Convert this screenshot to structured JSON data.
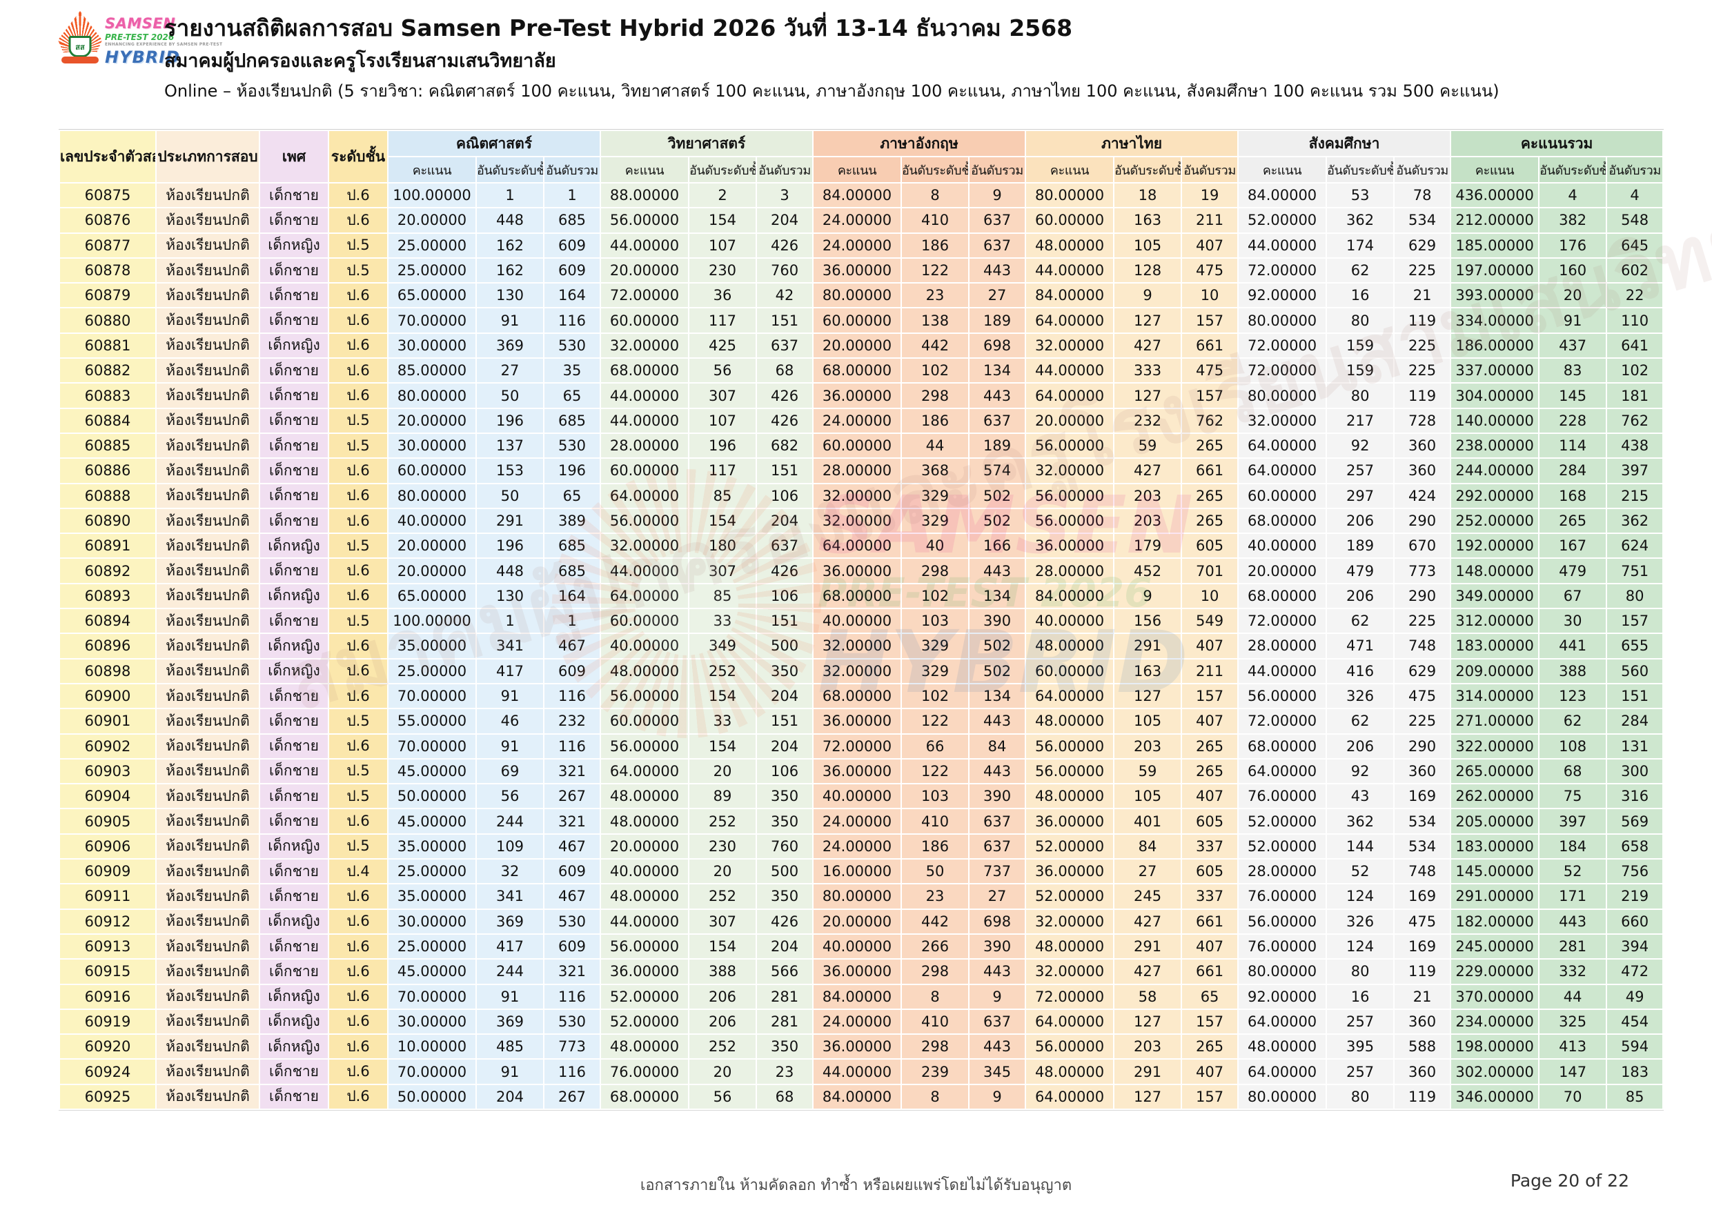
{
  "header": {
    "title": "รายงานสถิติผลการสอบ Samsen Pre-Test Hybrid 2026 วันที่ 13-14 ธันวาคม 2568",
    "subtitle": "สมาคมผู้ปกครองและครูโรงเรียนสามเสนวิทยาลัย",
    "description": "Online – ห้องเรียนปกติ (5 รายวิชา: คณิตศาสตร์ 100 คะแนน, วิทยาศาสตร์ 100 คะแนน, ภาษาอังกฤษ 100 คะแนน, ภาษาไทย 100 คะแนน, สังคมศึกษา 100 คะแนน รวม 500 คะแนน)",
    "logo": {
      "samsen": "SAMSEN",
      "pretest": "PRE-TEST 2026",
      "tagline": "ENHANCING EXPERIENCE BY SAMSEN PRE-TEST",
      "hybrid": "HYBRID",
      "monogram": "สส"
    }
  },
  "colors": {
    "column_id_bg": "#FCF4C0",
    "column_type_bg": "#FBEDDA",
    "column_gender_bg": "#F1DFF1",
    "column_grade_bg": "#FBE7AC",
    "math_bg": "#D7E9F6",
    "science_bg": "#E5EEDE",
    "english_bg": "#F8CDB2",
    "thai_bg": "#FBE2BD",
    "social_bg": "#EFEFEF",
    "total_bg": "#C5E1C6",
    "logo_pink": "#EC5FA8",
    "logo_green": "#37B34A",
    "logo_blue": "#3A6FB7",
    "emblem_orange": "#F15A24"
  },
  "watermark": {
    "samsen": "SAMSEN",
    "pretest": "PRE-TEST 2026",
    "hybrid": "HYBRID",
    "diagonal_text": "สมาคมผู้ปกครองและครูโรงเรียนสามเสนวิทยาลัย"
  },
  "table": {
    "single_columns": [
      "เลขประจำตัวสอบ",
      "ประเภทการสอบ",
      "เพศ",
      "ระดับชั้น"
    ],
    "groups": [
      {
        "key": "math",
        "label": "คณิตศาสตร์"
      },
      {
        "key": "sci",
        "label": "วิทยาศาสตร์"
      },
      {
        "key": "eng",
        "label": "ภาษาอังกฤษ"
      },
      {
        "key": "thai",
        "label": "ภาษาไทย"
      },
      {
        "key": "soc",
        "label": "สังคมศึกษา"
      },
      {
        "key": "total",
        "label": "คะแนนรวม"
      }
    ],
    "sub_columns": [
      "คะแนน",
      "อันดับระดับชั้น",
      "อันดับรวม"
    ],
    "rows": [
      [
        "60875",
        "ห้องเรียนปกติ",
        "เด็กชาย",
        "ป.6",
        "100.00000",
        "1",
        "1",
        "88.00000",
        "2",
        "3",
        "84.00000",
        "8",
        "9",
        "80.00000",
        "18",
        "19",
        "84.00000",
        "53",
        "78",
        "436.00000",
        "4",
        "4"
      ],
      [
        "60876",
        "ห้องเรียนปกติ",
        "เด็กชาย",
        "ป.6",
        "20.00000",
        "448",
        "685",
        "56.00000",
        "154",
        "204",
        "24.00000",
        "410",
        "637",
        "60.00000",
        "163",
        "211",
        "52.00000",
        "362",
        "534",
        "212.00000",
        "382",
        "548"
      ],
      [
        "60877",
        "ห้องเรียนปกติ",
        "เด็กหญิง",
        "ป.5",
        "25.00000",
        "162",
        "609",
        "44.00000",
        "107",
        "426",
        "24.00000",
        "186",
        "637",
        "48.00000",
        "105",
        "407",
        "44.00000",
        "174",
        "629",
        "185.00000",
        "176",
        "645"
      ],
      [
        "60878",
        "ห้องเรียนปกติ",
        "เด็กชาย",
        "ป.5",
        "25.00000",
        "162",
        "609",
        "20.00000",
        "230",
        "760",
        "36.00000",
        "122",
        "443",
        "44.00000",
        "128",
        "475",
        "72.00000",
        "62",
        "225",
        "197.00000",
        "160",
        "602"
      ],
      [
        "60879",
        "ห้องเรียนปกติ",
        "เด็กชาย",
        "ป.6",
        "65.00000",
        "130",
        "164",
        "72.00000",
        "36",
        "42",
        "80.00000",
        "23",
        "27",
        "84.00000",
        "9",
        "10",
        "92.00000",
        "16",
        "21",
        "393.00000",
        "20",
        "22"
      ],
      [
        "60880",
        "ห้องเรียนปกติ",
        "เด็กชาย",
        "ป.6",
        "70.00000",
        "91",
        "116",
        "60.00000",
        "117",
        "151",
        "60.00000",
        "138",
        "189",
        "64.00000",
        "127",
        "157",
        "80.00000",
        "80",
        "119",
        "334.00000",
        "91",
        "110"
      ],
      [
        "60881",
        "ห้องเรียนปกติ",
        "เด็กหญิง",
        "ป.6",
        "30.00000",
        "369",
        "530",
        "32.00000",
        "425",
        "637",
        "20.00000",
        "442",
        "698",
        "32.00000",
        "427",
        "661",
        "72.00000",
        "159",
        "225",
        "186.00000",
        "437",
        "641"
      ],
      [
        "60882",
        "ห้องเรียนปกติ",
        "เด็กชาย",
        "ป.6",
        "85.00000",
        "27",
        "35",
        "68.00000",
        "56",
        "68",
        "68.00000",
        "102",
        "134",
        "44.00000",
        "333",
        "475",
        "72.00000",
        "159",
        "225",
        "337.00000",
        "83",
        "102"
      ],
      [
        "60883",
        "ห้องเรียนปกติ",
        "เด็กชาย",
        "ป.6",
        "80.00000",
        "50",
        "65",
        "44.00000",
        "307",
        "426",
        "36.00000",
        "298",
        "443",
        "64.00000",
        "127",
        "157",
        "80.00000",
        "80",
        "119",
        "304.00000",
        "145",
        "181"
      ],
      [
        "60884",
        "ห้องเรียนปกติ",
        "เด็กชาย",
        "ป.5",
        "20.00000",
        "196",
        "685",
        "44.00000",
        "107",
        "426",
        "24.00000",
        "186",
        "637",
        "20.00000",
        "232",
        "762",
        "32.00000",
        "217",
        "728",
        "140.00000",
        "228",
        "762"
      ],
      [
        "60885",
        "ห้องเรียนปกติ",
        "เด็กชาย",
        "ป.5",
        "30.00000",
        "137",
        "530",
        "28.00000",
        "196",
        "682",
        "60.00000",
        "44",
        "189",
        "56.00000",
        "59",
        "265",
        "64.00000",
        "92",
        "360",
        "238.00000",
        "114",
        "438"
      ],
      [
        "60886",
        "ห้องเรียนปกติ",
        "เด็กชาย",
        "ป.6",
        "60.00000",
        "153",
        "196",
        "60.00000",
        "117",
        "151",
        "28.00000",
        "368",
        "574",
        "32.00000",
        "427",
        "661",
        "64.00000",
        "257",
        "360",
        "244.00000",
        "284",
        "397"
      ],
      [
        "60888",
        "ห้องเรียนปกติ",
        "เด็กชาย",
        "ป.6",
        "80.00000",
        "50",
        "65",
        "64.00000",
        "85",
        "106",
        "32.00000",
        "329",
        "502",
        "56.00000",
        "203",
        "265",
        "60.00000",
        "297",
        "424",
        "292.00000",
        "168",
        "215"
      ],
      [
        "60890",
        "ห้องเรียนปกติ",
        "เด็กชาย",
        "ป.6",
        "40.00000",
        "291",
        "389",
        "56.00000",
        "154",
        "204",
        "32.00000",
        "329",
        "502",
        "56.00000",
        "203",
        "265",
        "68.00000",
        "206",
        "290",
        "252.00000",
        "265",
        "362"
      ],
      [
        "60891",
        "ห้องเรียนปกติ",
        "เด็กหญิง",
        "ป.5",
        "20.00000",
        "196",
        "685",
        "32.00000",
        "180",
        "637",
        "64.00000",
        "40",
        "166",
        "36.00000",
        "179",
        "605",
        "40.00000",
        "189",
        "670",
        "192.00000",
        "167",
        "624"
      ],
      [
        "60892",
        "ห้องเรียนปกติ",
        "เด็กชาย",
        "ป.6",
        "20.00000",
        "448",
        "685",
        "44.00000",
        "307",
        "426",
        "36.00000",
        "298",
        "443",
        "28.00000",
        "452",
        "701",
        "20.00000",
        "479",
        "773",
        "148.00000",
        "479",
        "751"
      ],
      [
        "60893",
        "ห้องเรียนปกติ",
        "เด็กหญิง",
        "ป.6",
        "65.00000",
        "130",
        "164",
        "64.00000",
        "85",
        "106",
        "68.00000",
        "102",
        "134",
        "84.00000",
        "9",
        "10",
        "68.00000",
        "206",
        "290",
        "349.00000",
        "67",
        "80"
      ],
      [
        "60894",
        "ห้องเรียนปกติ",
        "เด็กชาย",
        "ป.5",
        "100.00000",
        "1",
        "1",
        "60.00000",
        "33",
        "151",
        "40.00000",
        "103",
        "390",
        "40.00000",
        "156",
        "549",
        "72.00000",
        "62",
        "225",
        "312.00000",
        "30",
        "157"
      ],
      [
        "60896",
        "ห้องเรียนปกติ",
        "เด็กหญิง",
        "ป.6",
        "35.00000",
        "341",
        "467",
        "40.00000",
        "349",
        "500",
        "32.00000",
        "329",
        "502",
        "48.00000",
        "291",
        "407",
        "28.00000",
        "471",
        "748",
        "183.00000",
        "441",
        "655"
      ],
      [
        "60898",
        "ห้องเรียนปกติ",
        "เด็กหญิง",
        "ป.6",
        "25.00000",
        "417",
        "609",
        "48.00000",
        "252",
        "350",
        "32.00000",
        "329",
        "502",
        "60.00000",
        "163",
        "211",
        "44.00000",
        "416",
        "629",
        "209.00000",
        "388",
        "560"
      ],
      [
        "60900",
        "ห้องเรียนปกติ",
        "เด็กชาย",
        "ป.6",
        "70.00000",
        "91",
        "116",
        "56.00000",
        "154",
        "204",
        "68.00000",
        "102",
        "134",
        "64.00000",
        "127",
        "157",
        "56.00000",
        "326",
        "475",
        "314.00000",
        "123",
        "151"
      ],
      [
        "60901",
        "ห้องเรียนปกติ",
        "เด็กชาย",
        "ป.5",
        "55.00000",
        "46",
        "232",
        "60.00000",
        "33",
        "151",
        "36.00000",
        "122",
        "443",
        "48.00000",
        "105",
        "407",
        "72.00000",
        "62",
        "225",
        "271.00000",
        "62",
        "284"
      ],
      [
        "60902",
        "ห้องเรียนปกติ",
        "เด็กชาย",
        "ป.6",
        "70.00000",
        "91",
        "116",
        "56.00000",
        "154",
        "204",
        "72.00000",
        "66",
        "84",
        "56.00000",
        "203",
        "265",
        "68.00000",
        "206",
        "290",
        "322.00000",
        "108",
        "131"
      ],
      [
        "60903",
        "ห้องเรียนปกติ",
        "เด็กชาย",
        "ป.5",
        "45.00000",
        "69",
        "321",
        "64.00000",
        "20",
        "106",
        "36.00000",
        "122",
        "443",
        "56.00000",
        "59",
        "265",
        "64.00000",
        "92",
        "360",
        "265.00000",
        "68",
        "300"
      ],
      [
        "60904",
        "ห้องเรียนปกติ",
        "เด็กชาย",
        "ป.5",
        "50.00000",
        "56",
        "267",
        "48.00000",
        "89",
        "350",
        "40.00000",
        "103",
        "390",
        "48.00000",
        "105",
        "407",
        "76.00000",
        "43",
        "169",
        "262.00000",
        "75",
        "316"
      ],
      [
        "60905",
        "ห้องเรียนปกติ",
        "เด็กชาย",
        "ป.6",
        "45.00000",
        "244",
        "321",
        "48.00000",
        "252",
        "350",
        "24.00000",
        "410",
        "637",
        "36.00000",
        "401",
        "605",
        "52.00000",
        "362",
        "534",
        "205.00000",
        "397",
        "569"
      ],
      [
        "60906",
        "ห้องเรียนปกติ",
        "เด็กหญิง",
        "ป.5",
        "35.00000",
        "109",
        "467",
        "20.00000",
        "230",
        "760",
        "24.00000",
        "186",
        "637",
        "52.00000",
        "84",
        "337",
        "52.00000",
        "144",
        "534",
        "183.00000",
        "184",
        "658"
      ],
      [
        "60909",
        "ห้องเรียนปกติ",
        "เด็กชาย",
        "ป.4",
        "25.00000",
        "32",
        "609",
        "40.00000",
        "20",
        "500",
        "16.00000",
        "50",
        "737",
        "36.00000",
        "27",
        "605",
        "28.00000",
        "52",
        "748",
        "145.00000",
        "52",
        "756"
      ],
      [
        "60911",
        "ห้องเรียนปกติ",
        "เด็กชาย",
        "ป.6",
        "35.00000",
        "341",
        "467",
        "48.00000",
        "252",
        "350",
        "80.00000",
        "23",
        "27",
        "52.00000",
        "245",
        "337",
        "76.00000",
        "124",
        "169",
        "291.00000",
        "171",
        "219"
      ],
      [
        "60912",
        "ห้องเรียนปกติ",
        "เด็กหญิง",
        "ป.6",
        "30.00000",
        "369",
        "530",
        "44.00000",
        "307",
        "426",
        "20.00000",
        "442",
        "698",
        "32.00000",
        "427",
        "661",
        "56.00000",
        "326",
        "475",
        "182.00000",
        "443",
        "660"
      ],
      [
        "60913",
        "ห้องเรียนปกติ",
        "เด็กชาย",
        "ป.6",
        "25.00000",
        "417",
        "609",
        "56.00000",
        "154",
        "204",
        "40.00000",
        "266",
        "390",
        "48.00000",
        "291",
        "407",
        "76.00000",
        "124",
        "169",
        "245.00000",
        "281",
        "394"
      ],
      [
        "60915",
        "ห้องเรียนปกติ",
        "เด็กชาย",
        "ป.6",
        "45.00000",
        "244",
        "321",
        "36.00000",
        "388",
        "566",
        "36.00000",
        "298",
        "443",
        "32.00000",
        "427",
        "661",
        "80.00000",
        "80",
        "119",
        "229.00000",
        "332",
        "472"
      ],
      [
        "60916",
        "ห้องเรียนปกติ",
        "เด็กหญิง",
        "ป.6",
        "70.00000",
        "91",
        "116",
        "52.00000",
        "206",
        "281",
        "84.00000",
        "8",
        "9",
        "72.00000",
        "58",
        "65",
        "92.00000",
        "16",
        "21",
        "370.00000",
        "44",
        "49"
      ],
      [
        "60919",
        "ห้องเรียนปกติ",
        "เด็กหญิง",
        "ป.6",
        "30.00000",
        "369",
        "530",
        "52.00000",
        "206",
        "281",
        "24.00000",
        "410",
        "637",
        "64.00000",
        "127",
        "157",
        "64.00000",
        "257",
        "360",
        "234.00000",
        "325",
        "454"
      ],
      [
        "60920",
        "ห้องเรียนปกติ",
        "เด็กหญิง",
        "ป.6",
        "10.00000",
        "485",
        "773",
        "48.00000",
        "252",
        "350",
        "36.00000",
        "298",
        "443",
        "56.00000",
        "203",
        "265",
        "48.00000",
        "395",
        "588",
        "198.00000",
        "413",
        "594"
      ],
      [
        "60924",
        "ห้องเรียนปกติ",
        "เด็กชาย",
        "ป.6",
        "70.00000",
        "91",
        "116",
        "76.00000",
        "20",
        "23",
        "44.00000",
        "239",
        "345",
        "48.00000",
        "291",
        "407",
        "64.00000",
        "257",
        "360",
        "302.00000",
        "147",
        "183"
      ],
      [
        "60925",
        "ห้องเรียนปกติ",
        "เด็กชาย",
        "ป.6",
        "50.00000",
        "204",
        "267",
        "68.00000",
        "56",
        "68",
        "84.00000",
        "8",
        "9",
        "64.00000",
        "127",
        "157",
        "80.00000",
        "80",
        "119",
        "346.00000",
        "70",
        "85"
      ]
    ]
  },
  "footer": {
    "notice": "เอกสารภายใน ห้ามคัดลอก ทำซ้ำ หรือเผยแพร่โดยไม่ได้รับอนุญาต",
    "page": "Page 20 of 22"
  }
}
